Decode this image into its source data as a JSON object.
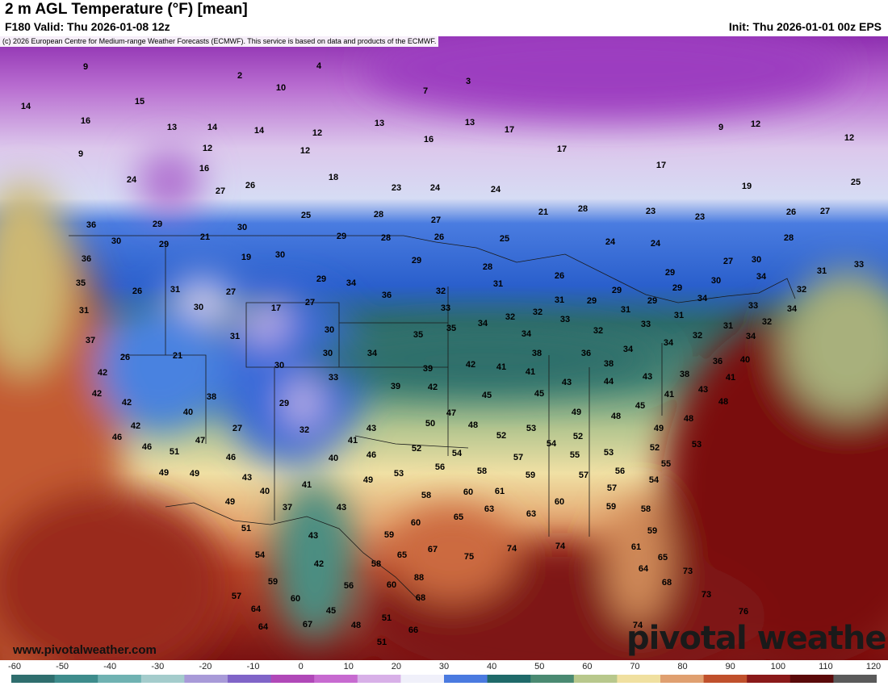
{
  "header": {
    "title": "2 m AGL Temperature (°F) [mean]",
    "valid": "F180 Valid: Thu 2026-01-08 12z",
    "init": "Init: Thu 2026-01-01 00z EPS",
    "copyright": "(c) 2026 European Centre for Medium-range Weather Forecasts (ECMWF). This service is based on data and products of the ECMWF."
  },
  "footer": {
    "website": "www.pivotalweather.com",
    "logo": "pivotal weather"
  },
  "colorbar": {
    "unit": "°F",
    "ticks": [
      "-60",
      "-50",
      "-40",
      "-30",
      "-20",
      "-10",
      "0",
      "10",
      "20",
      "30",
      "40",
      "50",
      "60",
      "70",
      "80",
      "90",
      "100",
      "110",
      "120"
    ],
    "colors": [
      "#2f6e6e",
      "#3e8c8c",
      "#6fb2b2",
      "#a4cccc",
      "#a89ad8",
      "#8064c8",
      "#b048b8",
      "#c76ad0",
      "#d8b0e8",
      "#f0f0fa",
      "#4a7ae0",
      "#1f6a6a",
      "#4a8a72",
      "#b8c88c",
      "#f0e0a0",
      "#e0a070",
      "#c0502c",
      "#8a1a1a",
      "#5a0a0a",
      "#5a5a5a"
    ]
  },
  "map": {
    "region": "CONUS",
    "stations": [
      [
        "9",
        106,
        82
      ],
      [
        "2",
        297,
        93
      ],
      [
        "4",
        395,
        81
      ],
      [
        "10",
        348,
        108
      ],
      [
        "3",
        580,
        100
      ],
      [
        "7",
        527,
        112
      ],
      [
        "14",
        32,
        131
      ],
      [
        "15",
        173,
        125
      ],
      [
        "16",
        106,
        149
      ],
      [
        "13",
        213,
        157
      ],
      [
        "14",
        263,
        157
      ],
      [
        "14",
        321,
        161
      ],
      [
        "12",
        393,
        164
      ],
      [
        "12",
        257,
        183
      ],
      [
        "12",
        378,
        186
      ],
      [
        "13",
        470,
        152
      ],
      [
        "13",
        582,
        151
      ],
      [
        "16",
        531,
        172
      ],
      [
        "17",
        631,
        160
      ],
      [
        "17",
        696,
        184
      ],
      [
        "9",
        893,
        157
      ],
      [
        "12",
        936,
        153
      ],
      [
        "12",
        1052,
        170
      ],
      [
        "17",
        819,
        204
      ],
      [
        "9",
        100,
        190
      ],
      [
        "16",
        253,
        208
      ],
      [
        "18",
        413,
        219
      ],
      [
        "24",
        163,
        222
      ],
      [
        "26",
        310,
        229
      ],
      [
        "27",
        273,
        236
      ],
      [
        "23",
        491,
        232
      ],
      [
        "24",
        539,
        232
      ],
      [
        "24",
        614,
        234
      ],
      [
        "19",
        925,
        230
      ],
      [
        "25",
        1060,
        225
      ],
      [
        "25",
        379,
        266
      ],
      [
        "28",
        469,
        265
      ],
      [
        "27",
        540,
        272
      ],
      [
        "21",
        673,
        262
      ],
      [
        "28",
        722,
        258
      ],
      [
        "23",
        806,
        261
      ],
      [
        "23",
        867,
        268
      ],
      [
        "26",
        980,
        262
      ],
      [
        "27",
        1022,
        261
      ],
      [
        "29",
        195,
        277
      ],
      [
        "30",
        300,
        281
      ],
      [
        "36",
        113,
        278
      ],
      [
        "21",
        254,
        293
      ],
      [
        "29",
        203,
        302
      ],
      [
        "29",
        423,
        292
      ],
      [
        "28",
        478,
        294
      ],
      [
        "26",
        544,
        293
      ],
      [
        "25",
        625,
        295
      ],
      [
        "24",
        756,
        299
      ],
      [
        "24",
        812,
        301
      ],
      [
        "28",
        977,
        294
      ],
      [
        "30",
        144,
        298
      ],
      [
        "36",
        107,
        320
      ],
      [
        "19",
        305,
        318
      ],
      [
        "30",
        347,
        315
      ],
      [
        "29",
        516,
        322
      ],
      [
        "28",
        604,
        330
      ],
      [
        "27",
        902,
        323
      ],
      [
        "30",
        937,
        321
      ],
      [
        "31",
        1018,
        335
      ],
      [
        "33",
        1064,
        327
      ],
      [
        "35",
        100,
        350
      ],
      [
        "26",
        170,
        360
      ],
      [
        "31",
        217,
        358
      ],
      [
        "27",
        286,
        361
      ],
      [
        "29",
        398,
        345
      ],
      [
        "34",
        435,
        350
      ],
      [
        "36",
        479,
        365
      ],
      [
        "32",
        546,
        360
      ],
      [
        "31",
        617,
        351
      ],
      [
        "26",
        693,
        341
      ],
      [
        "29",
        830,
        337
      ],
      [
        "29",
        839,
        356
      ],
      [
        "30",
        887,
        347
      ],
      [
        "34",
        943,
        342
      ],
      [
        "32",
        993,
        358
      ],
      [
        "17",
        342,
        381
      ],
      [
        "27",
        384,
        374
      ],
      [
        "31",
        104,
        384
      ],
      [
        "30",
        246,
        380
      ],
      [
        "33",
        552,
        381
      ],
      [
        "34",
        598,
        400
      ],
      [
        "32",
        632,
        392
      ],
      [
        "32",
        666,
        386
      ],
      [
        "31",
        693,
        371
      ],
      [
        "29",
        733,
        372
      ],
      [
        "29",
        764,
        359
      ],
      [
        "31",
        775,
        383
      ],
      [
        "29",
        808,
        372
      ],
      [
        "34",
        870,
        369
      ],
      [
        "33",
        933,
        378
      ],
      [
        "34",
        981,
        382
      ],
      [
        "37",
        112,
        421
      ],
      [
        "31",
        291,
        416
      ],
      [
        "30",
        408,
        408
      ],
      [
        "35",
        518,
        414
      ],
      [
        "35",
        559,
        406
      ],
      [
        "34",
        652,
        413
      ],
      [
        "33",
        700,
        395
      ],
      [
        "32",
        741,
        409
      ],
      [
        "33",
        800,
        401
      ],
      [
        "31",
        841,
        390
      ],
      [
        "32",
        864,
        415
      ],
      [
        "31",
        902,
        403
      ],
      [
        "32",
        950,
        398
      ],
      [
        "34",
        930,
        416
      ],
      [
        "26",
        155,
        442
      ],
      [
        "21",
        220,
        440
      ],
      [
        "30",
        406,
        437
      ],
      [
        "34",
        461,
        437
      ],
      [
        "38",
        665,
        437
      ],
      [
        "36",
        726,
        437
      ],
      [
        "34",
        778,
        432
      ],
      [
        "34",
        828,
        424
      ],
      [
        "40",
        923,
        445
      ],
      [
        "36",
        889,
        447
      ],
      [
        "42",
        127,
        461
      ],
      [
        "30",
        346,
        452
      ],
      [
        "33",
        413,
        467
      ],
      [
        "39",
        530,
        456
      ],
      [
        "42",
        583,
        451
      ],
      [
        "41",
        621,
        454
      ],
      [
        "41",
        657,
        460
      ],
      [
        "38",
        754,
        450
      ],
      [
        "43",
        702,
        473
      ],
      [
        "44",
        754,
        472
      ],
      [
        "43",
        802,
        466
      ],
      [
        "38",
        848,
        463
      ],
      [
        "41",
        905,
        467
      ],
      [
        "42",
        120,
        487
      ],
      [
        "39",
        490,
        478
      ],
      [
        "42",
        536,
        479
      ],
      [
        "45",
        603,
        489
      ],
      [
        "45",
        668,
        487
      ],
      [
        "41",
        829,
        488
      ],
      [
        "43",
        871,
        482
      ],
      [
        "48",
        896,
        497
      ],
      [
        "42",
        157,
        498
      ],
      [
        "38",
        262,
        491
      ],
      [
        "29",
        352,
        499
      ],
      [
        "40",
        233,
        510
      ],
      [
        "47",
        559,
        511
      ],
      [
        "49",
        714,
        510
      ],
      [
        "48",
        763,
        515
      ],
      [
        "45",
        793,
        502
      ],
      [
        "49",
        816,
        530
      ],
      [
        "48",
        853,
        518
      ],
      [
        "42",
        168,
        527
      ],
      [
        "27",
        294,
        530
      ],
      [
        "32",
        377,
        532
      ],
      [
        "43",
        460,
        530
      ],
      [
        "50",
        533,
        524
      ],
      [
        "48",
        586,
        526
      ],
      [
        "53",
        658,
        530
      ],
      [
        "46",
        145,
        541
      ],
      [
        "47",
        248,
        545
      ],
      [
        "41",
        437,
        545
      ],
      [
        "52",
        621,
        539
      ],
      [
        "54",
        683,
        549
      ],
      [
        "52",
        716,
        540
      ],
      [
        "53",
        754,
        560
      ],
      [
        "52",
        811,
        554
      ],
      [
        "53",
        863,
        550
      ],
      [
        "46",
        182,
        553
      ],
      [
        "51",
        216,
        559
      ],
      [
        "40",
        413,
        567
      ],
      [
        "46",
        460,
        563
      ],
      [
        "52",
        516,
        555
      ],
      [
        "54",
        566,
        561
      ],
      [
        "55",
        712,
        563
      ],
      [
        "55",
        825,
        574
      ],
      [
        "46",
        286,
        566
      ],
      [
        "49",
        203,
        585
      ],
      [
        "49",
        241,
        586
      ],
      [
        "43",
        306,
        591
      ],
      [
        "53",
        494,
        586
      ],
      [
        "56",
        545,
        578
      ],
      [
        "57",
        642,
        566
      ],
      [
        "59",
        657,
        588
      ],
      [
        "57",
        723,
        588
      ],
      [
        "56",
        768,
        583
      ],
      [
        "58",
        597,
        583
      ],
      [
        "54",
        810,
        594
      ],
      [
        "49",
        456,
        594
      ],
      [
        "41",
        380,
        600
      ],
      [
        "40",
        328,
        608
      ],
      [
        "57",
        758,
        604
      ],
      [
        "49",
        285,
        621
      ],
      [
        "37",
        356,
        628
      ],
      [
        "43",
        423,
        628
      ],
      [
        "58",
        528,
        613
      ],
      [
        "60",
        580,
        609
      ],
      [
        "61",
        619,
        608
      ],
      [
        "60",
        693,
        621
      ],
      [
        "59",
        757,
        627
      ],
      [
        "58",
        800,
        630
      ],
      [
        "65",
        568,
        640
      ],
      [
        "63",
        606,
        630
      ],
      [
        "63",
        658,
        636
      ],
      [
        "60",
        515,
        647
      ],
      [
        "51",
        305,
        654
      ],
      [
        "59",
        482,
        662
      ],
      [
        "59",
        808,
        657
      ],
      [
        "43",
        388,
        663
      ],
      [
        "74",
        694,
        676
      ],
      [
        "74",
        634,
        679
      ],
      [
        "75",
        581,
        689
      ],
      [
        "67",
        536,
        680
      ],
      [
        "65",
        498,
        687
      ],
      [
        "61",
        788,
        677
      ],
      [
        "65",
        821,
        690
      ],
      [
        "54",
        322,
        687
      ],
      [
        "42",
        395,
        698
      ],
      [
        "58",
        466,
        698
      ],
      [
        "64",
        797,
        704
      ],
      [
        "73",
        852,
        707
      ],
      [
        "59",
        338,
        720
      ],
      [
        "56",
        432,
        725
      ],
      [
        "60",
        485,
        724
      ],
      [
        "88",
        519,
        715
      ],
      [
        "68",
        826,
        721
      ],
      [
        "57",
        293,
        738
      ],
      [
        "60",
        366,
        741
      ],
      [
        "68",
        521,
        740
      ],
      [
        "73",
        875,
        736
      ],
      [
        "64",
        317,
        754
      ],
      [
        "45",
        410,
        756
      ],
      [
        "51",
        479,
        765
      ],
      [
        "76",
        921,
        757
      ],
      [
        "48",
        441,
        774
      ],
      [
        "66",
        512,
        780
      ],
      [
        "64",
        326,
        776
      ],
      [
        "67",
        381,
        773
      ],
      [
        "74",
        790,
        774
      ],
      [
        "51",
        473,
        795
      ]
    ]
  }
}
